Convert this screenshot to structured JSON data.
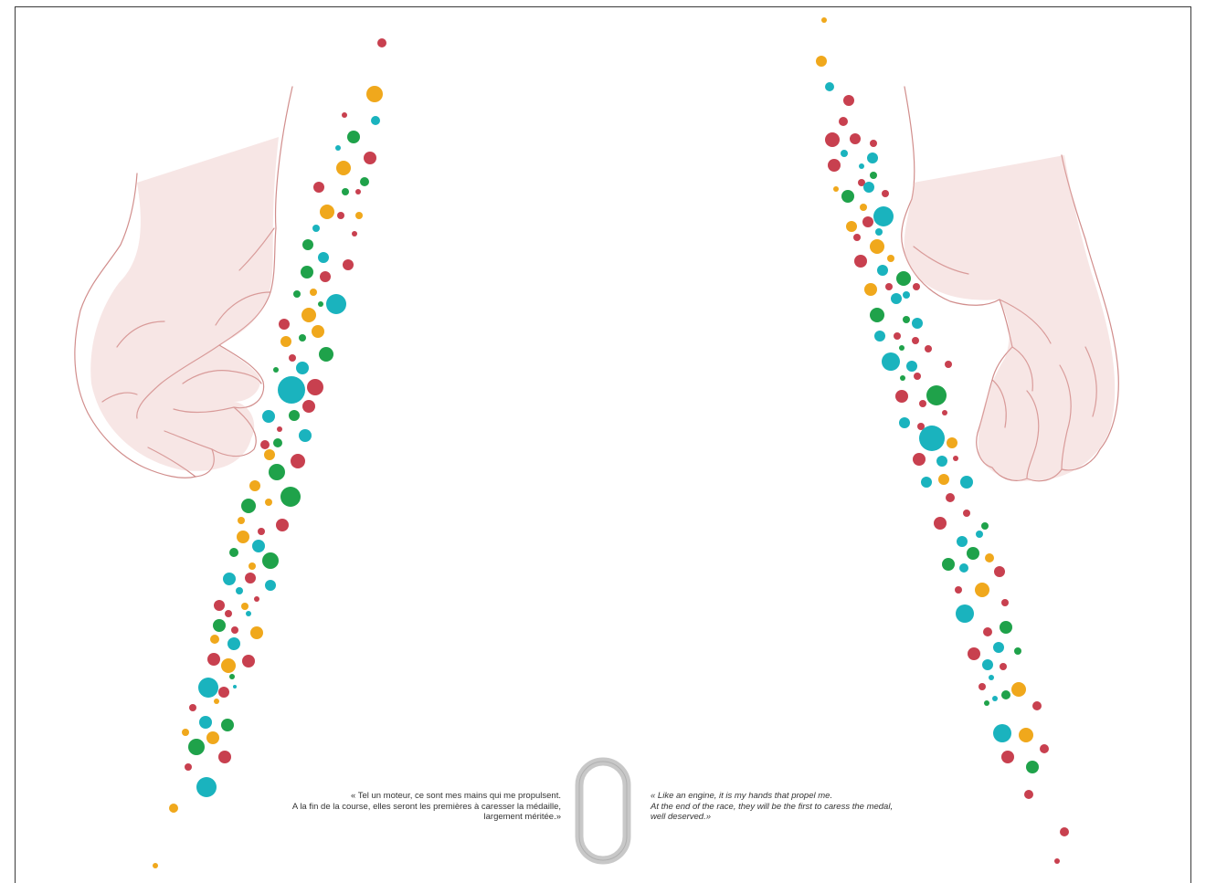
{
  "quote_fr": {
    "line1": "« Tel un moteur, ce sont mes mains qui me propulsent.",
    "line2": "A la fin de la course, elles seront les premières à caresser la médaille,",
    "line3": "largement méritée.»"
  },
  "quote_en": {
    "line1": "« Like an engine, it is my hands that propel me.",
    "line2": "At the end of the race, they will be the first to caress the medal,",
    "line3": "well deserved.»"
  },
  "colors": {
    "red": "#c8404f",
    "teal": "#1ab3be",
    "green": "#1fa24a",
    "orange": "#f0a81c",
    "hand_stroke": "#c97a78",
    "ring": "#c8c8c8"
  }
}
